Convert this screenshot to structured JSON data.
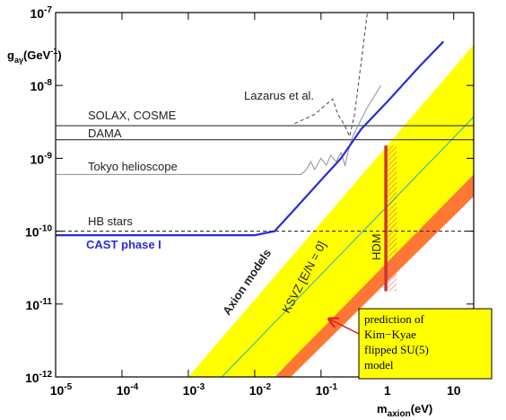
{
  "chart_data": {
    "type": "line",
    "xlabel": {
      "base": "m",
      "sub": "axion",
      "unit": "(eV)"
    },
    "ylabel": {
      "base": "g",
      "sub": "aγ",
      "unit": "(GeV",
      "sup": "-1",
      "close": ")"
    },
    "xlog": true,
    "ylog": true,
    "grid": false,
    "xlim": [
      1e-05,
      20
    ],
    "ylim": [
      1e-12,
      1e-07
    ],
    "xticks": [
      {
        "value": 1e-05,
        "label": "10",
        "exponent": "-5"
      },
      {
        "value": 0.0001,
        "label": "10",
        "exponent": "-4"
      },
      {
        "value": 0.001,
        "label": "10",
        "exponent": "-3"
      },
      {
        "value": 0.01,
        "label": "10",
        "exponent": "-2"
      },
      {
        "value": 0.1,
        "label": "10",
        "exponent": "-1"
      },
      1,
      10
    ],
    "yticks": [
      {
        "value": 1e-12,
        "label": "10",
        "exponent": "-12"
      },
      {
        "value": 1e-11,
        "label": "10",
        "exponent": "-11"
      },
      {
        "value": 1e-10,
        "label": "10",
        "exponent": "-10"
      },
      {
        "value": 1e-09,
        "label": "10",
        "exponent": "-9"
      },
      {
        "value": 1e-08,
        "label": "10",
        "exponent": "-8"
      },
      {
        "value": 1e-07,
        "label": "10",
        "exponent": "-7"
      }
    ],
    "series": [
      {
        "name": "Axion models",
        "kind": "area",
        "color": "#ffff00",
        "x": [
          0.001,
          20,
          20,
          0.019
        ],
        "values": [
          1e-12,
          3.6e-08,
          3.3e-10,
          1e-12
        ]
      },
      {
        "name": "KSVZ [E/N = 0]",
        "kind": "line",
        "color": "#33bbaa",
        "x": [
          0.0032,
          20
        ],
        "values": [
          1e-12,
          3.7e-09
        ]
      },
      {
        "kind": "area",
        "color": "#ff7733",
        "x": [
          0.02,
          20,
          20,
          0.035
        ],
        "values": [
          1e-12,
          6e-10,
          3e-10,
          1e-12
        ]
      },
      {
        "name": "HDM",
        "kind": "line",
        "color": "#cc3333",
        "x": [
          0.95,
          0.95
        ],
        "values": [
          1.5e-09,
          1.5e-11
        ]
      },
      {
        "name": "SOLAX, COSME",
        "kind": "line",
        "color": "#333333",
        "x": [
          1e-05,
          20
        ],
        "values": [
          2.8e-09,
          2.8e-09
        ]
      },
      {
        "name": "DAMA",
        "kind": "line",
        "color": "#333333",
        "x": [
          1e-05,
          20
        ],
        "values": [
          1.8e-09,
          1.8e-09
        ]
      },
      {
        "name": "HB stars",
        "kind": "line",
        "dashed": true,
        "color": "#333333",
        "x": [
          1e-05,
          20
        ],
        "values": [
          1e-10,
          1e-10
        ]
      },
      {
        "name": "Tokyo helioscope",
        "kind": "line",
        "color": "#999999",
        "x": [
          1e-05,
          0.05,
          0.06,
          0.07,
          0.08,
          0.1,
          0.12,
          0.14,
          0.17,
          0.2,
          0.23,
          0.26,
          0.3,
          0.5,
          0.8
        ],
        "values": [
          6e-10,
          6e-10,
          7e-10,
          9e-10,
          7e-10,
          1e-09,
          8e-10,
          1.1e-09,
          9e-10,
          1.2e-09,
          8e-10,
          1.3e-09,
          2e-09,
          5e-09,
          1e-08
        ]
      },
      {
        "name": "Lazarus et al.",
        "kind": "line",
        "dashed": true,
        "color": "#555555",
        "x": [
          0.04,
          0.08,
          0.12,
          0.15,
          0.18,
          0.22,
          0.27,
          0.32,
          0.4,
          0.5
        ],
        "values": [
          3e-09,
          4e-09,
          5.5e-09,
          6.5e-09,
          4e-09,
          3e-09,
          2e-09,
          4e-09,
          2e-08,
          1e-07
        ]
      },
      {
        "name": "CAST phase I",
        "kind": "line",
        "color": "#2a2adc",
        "x": [
          1e-05,
          0.01,
          0.02,
          0.04,
          0.1,
          0.2,
          0.4,
          1,
          3,
          7
        ],
        "values": [
          8.8e-11,
          8.8e-11,
          1e-10,
          2e-10,
          5e-10,
          1e-09,
          2.5e-09,
          6e-09,
          1.8e-08,
          4e-08
        ]
      }
    ],
    "annotation": [
      "prediction of",
      "Kim−Kyae",
      "flipped SU(5)",
      "model"
    ]
  }
}
